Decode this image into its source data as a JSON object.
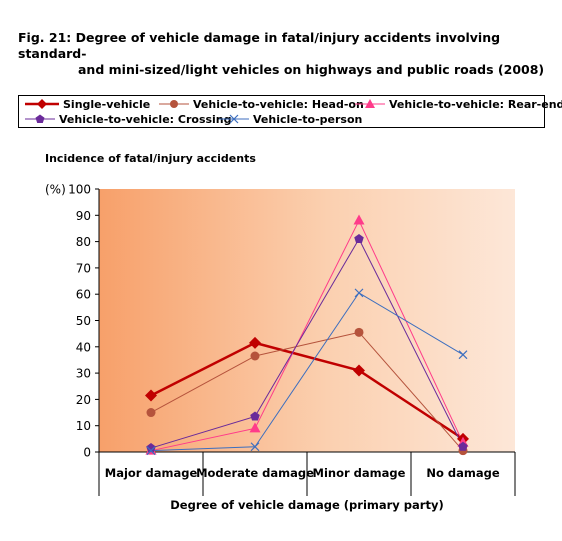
{
  "figure": {
    "title_line1": "Fig. 21: Degree of vehicle damage in fatal/injury accidents involving standard-",
    "title_line2": "and mini-sized/light vehicles on highways and public roads (2008)"
  },
  "chart_data": {
    "type": "line",
    "title": "Fig. 21: Degree of vehicle damage in fatal/injury accidents involving standard-and mini-sized/light vehicles on highways and public roads (2008)",
    "ylabel": "Incidence of fatal/injury accidents",
    "yunit": "(%)",
    "xlabel": "Degree of vehicle damage (primary party)",
    "ylim": [
      0,
      100
    ],
    "yticks": [
      0,
      10,
      20,
      30,
      40,
      50,
      60,
      70,
      80,
      90,
      100
    ],
    "grid": false,
    "legend_position": "top",
    "categories": [
      "Major damage",
      "Moderate damage",
      "Minor damage",
      "No damage"
    ],
    "series": [
      {
        "name": "Single-vehicle",
        "values": [
          21.5,
          41.5,
          31,
          5
        ],
        "color": "#c00000",
        "marker": "diamond",
        "width": 2.5
      },
      {
        "name": "Vehicle-to-vehicle: Head-on",
        "values": [
          15,
          36.5,
          45.5,
          0.5
        ],
        "color": "#b5533c",
        "marker": "circle",
        "width": 1
      },
      {
        "name": "Vehicle-to-vehicle: Rear-end",
        "values": [
          0.5,
          9,
          88,
          3.5
        ],
        "color": "#ff3b8a",
        "marker": "triangle",
        "width": 1
      },
      {
        "name": "Vehicle-to-vehicle: Crossing",
        "values": [
          1.5,
          13.5,
          81,
          2
        ],
        "color": "#6a2a9a",
        "marker": "pentagon",
        "width": 1
      },
      {
        "name": "Vehicle-to-person",
        "values": [
          0.5,
          2,
          60.5,
          37
        ],
        "color": "#3c6ebf",
        "marker": "x",
        "width": 1
      }
    ]
  }
}
